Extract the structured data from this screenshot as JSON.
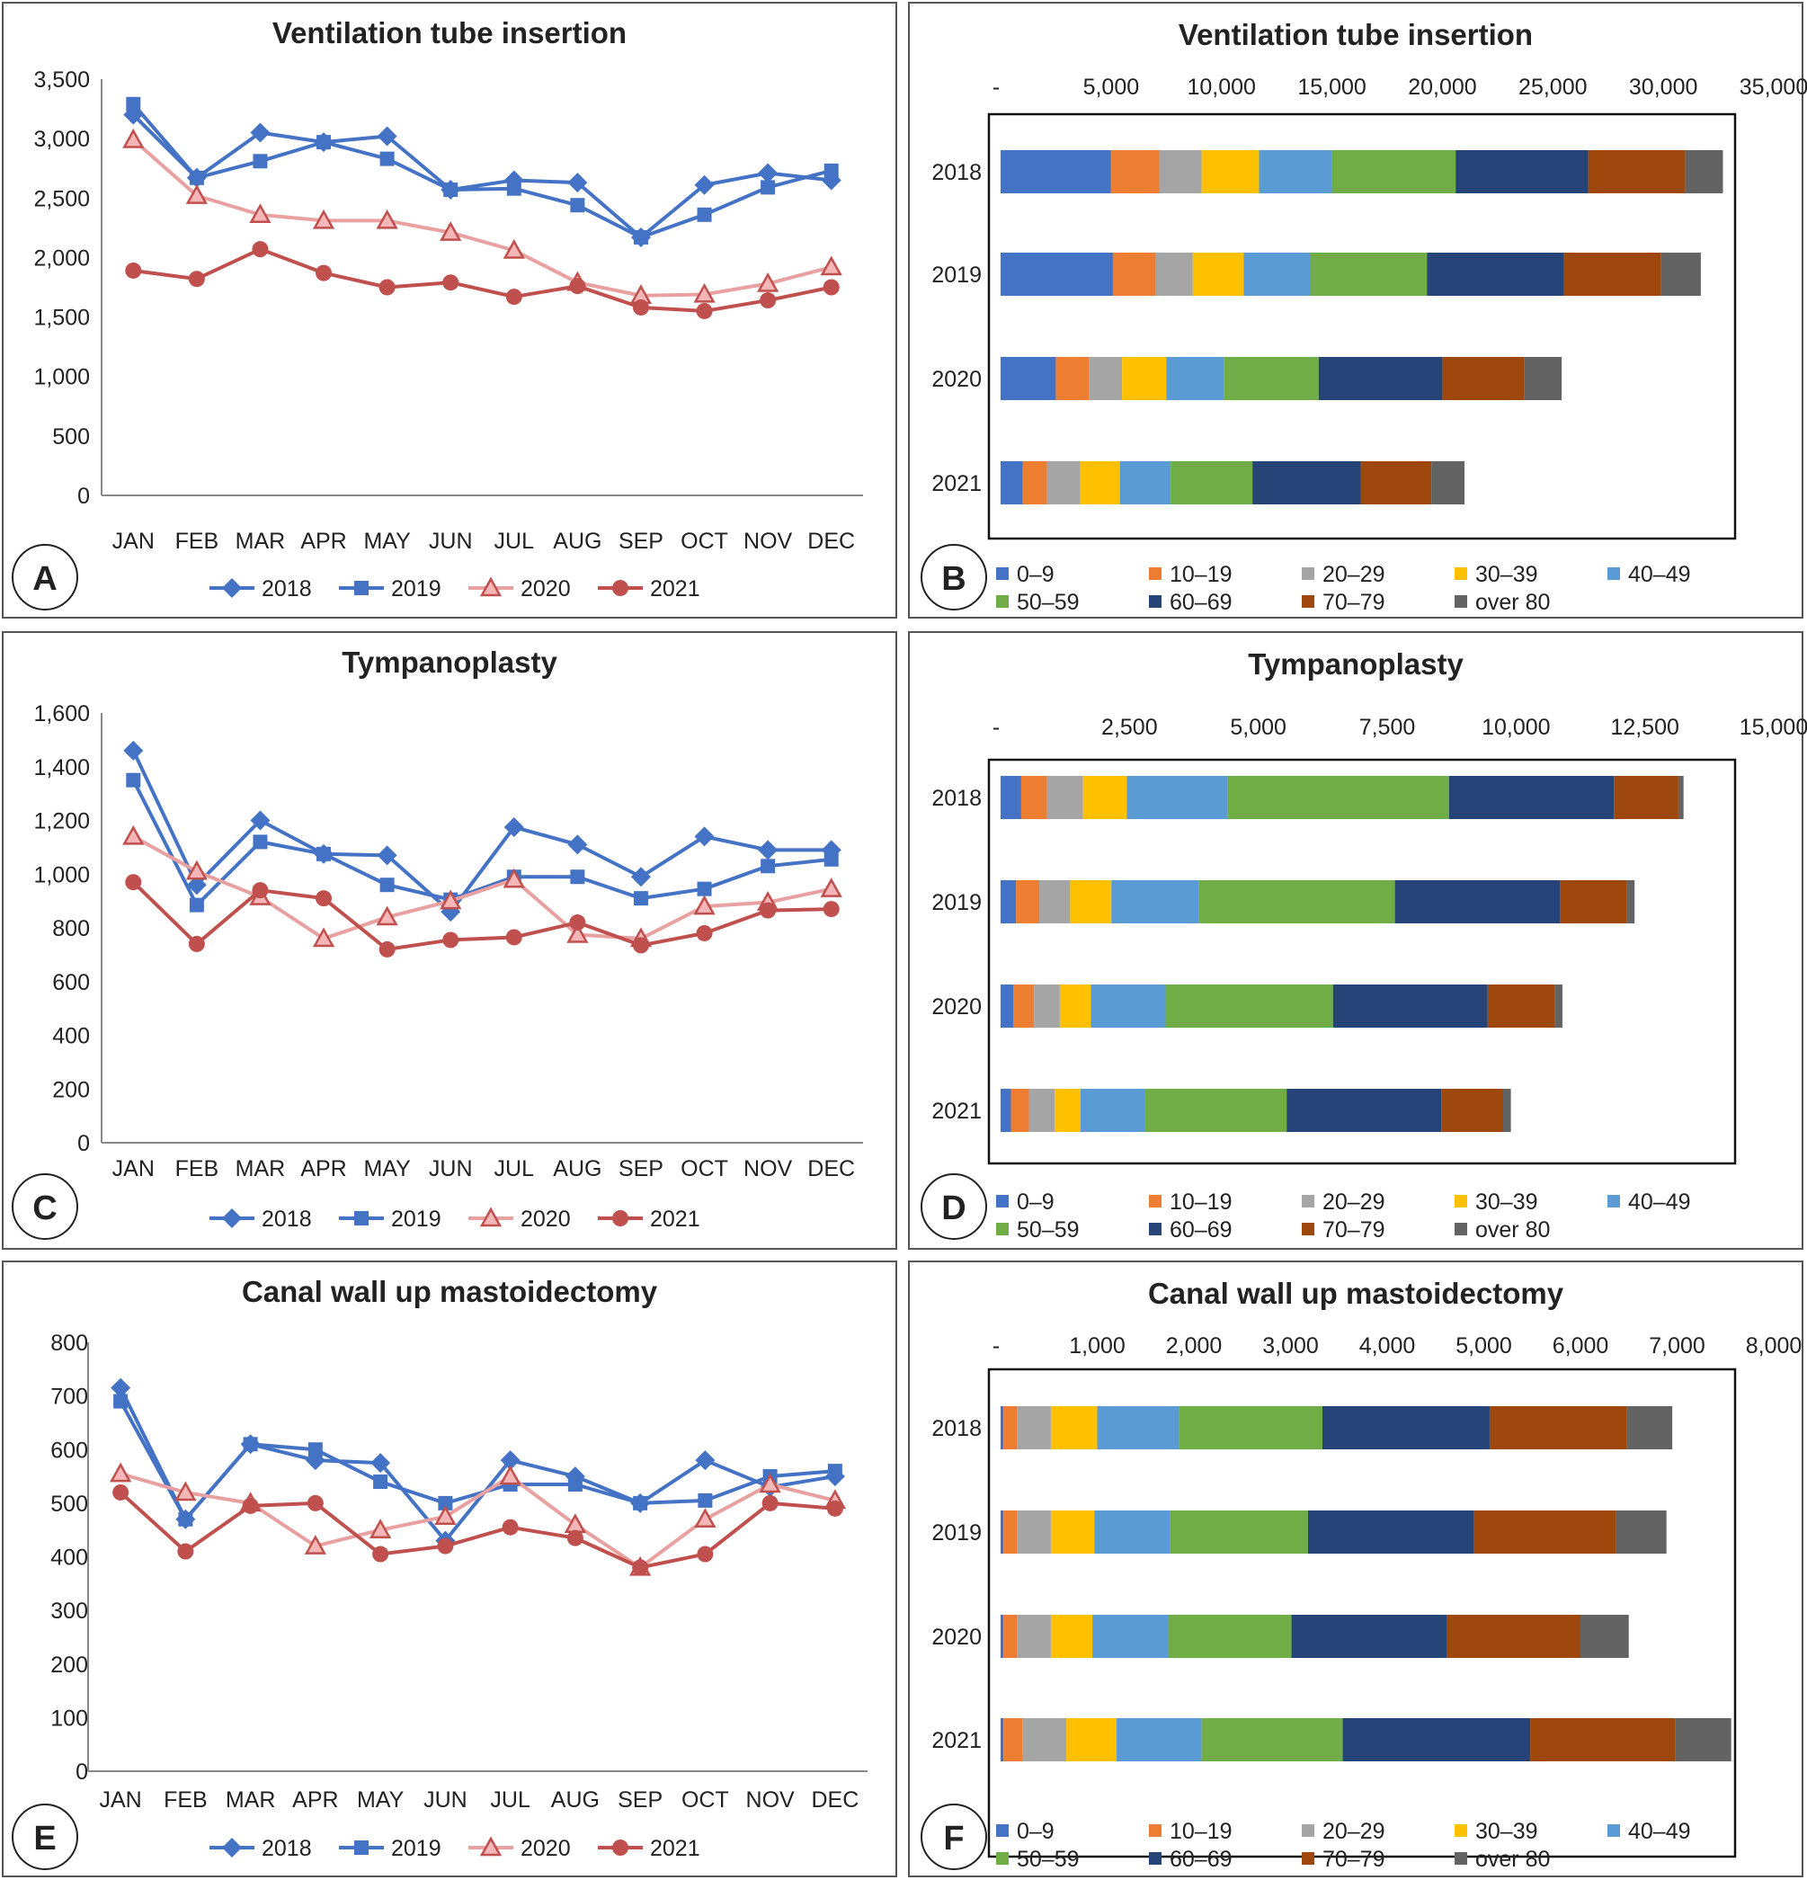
{
  "months": [
    "JAN",
    "FEB",
    "MAR",
    "APR",
    "MAY",
    "JUN",
    "JUL",
    "AUG",
    "SEP",
    "OCT",
    "NOV",
    "DEC"
  ],
  "years": [
    "2018",
    "2019",
    "2020",
    "2021"
  ],
  "age_groups": [
    "0–9",
    "10–19",
    "20–29",
    "30–39",
    "40–49",
    "50–59",
    "60–69",
    "70–79",
    "over 80"
  ],
  "colors": {
    "line": {
      "2018": "#4472C4",
      "2019": "#4472C4",
      "2020": "#E8A0A0",
      "2021": "#C0504D"
    },
    "line_marker": {
      "2020": "#C0504D"
    },
    "age": [
      "#4472C4",
      "#ED7D31",
      "#A5A5A5",
      "#FFC000",
      "#5B9BD5",
      "#70AD47",
      "#264478",
      "#9E480E",
      "#636363"
    ]
  },
  "chart_data": [
    {
      "panel": "A",
      "type": "line",
      "title": "Ventilation tube insertion",
      "ylim": [
        0,
        3500
      ],
      "yticks": [
        "0",
        "500",
        "1,000",
        "1,500",
        "2,000",
        "2,500",
        "3,000",
        "3,500"
      ],
      "series": [
        {
          "name": "2018",
          "marker": "diamond",
          "values": [
            3200,
            2670,
            3050,
            2970,
            3020,
            2570,
            2650,
            2630,
            2170,
            2610,
            2710,
            2650
          ]
        },
        {
          "name": "2019",
          "marker": "square",
          "values": [
            3290,
            2670,
            2810,
            2970,
            2830,
            2570,
            2580,
            2440,
            2170,
            2360,
            2590,
            2730
          ]
        },
        {
          "name": "2020",
          "marker": "triangle",
          "values": [
            2990,
            2520,
            2360,
            2310,
            2310,
            2210,
            2060,
            1790,
            1680,
            1690,
            1780,
            1920
          ]
        },
        {
          "name": "2021",
          "marker": "circle",
          "values": [
            1890,
            1820,
            2070,
            1870,
            1750,
            1790,
            1670,
            1760,
            1580,
            1550,
            1640,
            1750
          ]
        }
      ]
    },
    {
      "panel": "B",
      "type": "bar",
      "orientation": "horizontal",
      "stacked": true,
      "title": "Ventilation tube insertion",
      "xlim": [
        0,
        35000
      ],
      "xticks": [
        "-",
        "5,000",
        "10,000",
        "15,000",
        "20,000",
        "25,000",
        "30,000",
        "35,000"
      ],
      "categories": [
        "2018",
        "2019",
        "2020",
        "2021"
      ],
      "series": [
        {
          "name": "0–9",
          "values": [
            5000,
            5100,
            2500,
            1000
          ]
        },
        {
          "name": "10–19",
          "values": [
            2200,
            1900,
            1500,
            1100
          ]
        },
        {
          "name": "20–29",
          "values": [
            1900,
            1700,
            1500,
            1500
          ]
        },
        {
          "name": "30–39",
          "values": [
            2600,
            2300,
            2000,
            1800
          ]
        },
        {
          "name": "40–49",
          "values": [
            3300,
            3000,
            2600,
            2300
          ]
        },
        {
          "name": "50–59",
          "values": [
            5600,
            5300,
            4300,
            3700
          ]
        },
        {
          "name": "60–69",
          "values": [
            6000,
            6200,
            5600,
            4900
          ]
        },
        {
          "name": "70–79",
          "values": [
            4400,
            4400,
            3700,
            3200
          ]
        },
        {
          "name": "over 80",
          "values": [
            1700,
            1800,
            1700,
            1500
          ]
        }
      ]
    },
    {
      "panel": "C",
      "type": "line",
      "title": "Tympanoplasty",
      "ylim": [
        0,
        1600
      ],
      "yticks": [
        "0",
        "200",
        "400",
        "600",
        "800",
        "1,000",
        "1,200",
        "1,400",
        "1,600"
      ],
      "series": [
        {
          "name": "2018",
          "marker": "diamond",
          "values": [
            1460,
            960,
            1200,
            1075,
            1070,
            860,
            1175,
            1110,
            990,
            1140,
            1090,
            1090
          ]
        },
        {
          "name": "2019",
          "marker": "square",
          "values": [
            1350,
            885,
            1120,
            1075,
            960,
            905,
            990,
            990,
            910,
            945,
            1030,
            1055
          ]
        },
        {
          "name": "2020",
          "marker": "triangle",
          "values": [
            1140,
            1010,
            915,
            760,
            840,
            900,
            980,
            775,
            760,
            880,
            895,
            945
          ]
        },
        {
          "name": "2021",
          "marker": "circle",
          "values": [
            970,
            740,
            940,
            910,
            720,
            755,
            765,
            820,
            735,
            780,
            865,
            870
          ]
        }
      ]
    },
    {
      "panel": "D",
      "type": "bar",
      "orientation": "horizontal",
      "stacked": true,
      "title": "Tympanoplasty",
      "xlim": [
        0,
        15000
      ],
      "xticks": [
        "-",
        "2,500",
        "5,000",
        "7,500",
        "10,000",
        "12,500",
        "15,000"
      ],
      "categories": [
        "2018",
        "2019",
        "2020",
        "2021"
      ],
      "series": [
        {
          "name": "0–9",
          "values": [
            400,
            300,
            250,
            200
          ]
        },
        {
          "name": "10–19",
          "values": [
            500,
            450,
            400,
            350
          ]
        },
        {
          "name": "20–29",
          "values": [
            700,
            600,
            500,
            500
          ]
        },
        {
          "name": "30–39",
          "values": [
            850,
            800,
            600,
            500
          ]
        },
        {
          "name": "40–49",
          "values": [
            1950,
            1700,
            1450,
            1250
          ]
        },
        {
          "name": "50–59",
          "values": [
            4300,
            3800,
            3250,
            2750
          ]
        },
        {
          "name": "60–69",
          "values": [
            3200,
            3200,
            3000,
            3000
          ]
        },
        {
          "name": "70–79",
          "values": [
            1250,
            1300,
            1300,
            1200
          ]
        },
        {
          "name": "over 80",
          "values": [
            100,
            150,
            150,
            150
          ]
        }
      ]
    },
    {
      "panel": "E",
      "type": "line",
      "title": "Canal wall up mastoidectomy",
      "ylim": [
        0,
        800
      ],
      "yticks": [
        "0",
        "100",
        "200",
        "300",
        "400",
        "500",
        "600",
        "700",
        "800"
      ],
      "series": [
        {
          "name": "2018",
          "marker": "diamond",
          "values": [
            715,
            470,
            610,
            580,
            575,
            430,
            580,
            550,
            500,
            580,
            530,
            550
          ]
        },
        {
          "name": "2019",
          "marker": "square",
          "values": [
            690,
            470,
            610,
            600,
            540,
            500,
            535,
            535,
            500,
            505,
            550,
            560
          ]
        },
        {
          "name": "2020",
          "marker": "triangle",
          "values": [
            555,
            520,
            500,
            420,
            450,
            475,
            550,
            460,
            380,
            470,
            535,
            505
          ]
        },
        {
          "name": "2021",
          "marker": "circle",
          "values": [
            520,
            410,
            495,
            500,
            405,
            420,
            455,
            435,
            380,
            405,
            500,
            490
          ]
        }
      ]
    },
    {
      "panel": "F",
      "type": "bar",
      "orientation": "horizontal",
      "stacked": true,
      "title": "Canal wall up mastoidectomy",
      "xlim": [
        0,
        8000
      ],
      "xticks": [
        "-",
        "1,000",
        "2,000",
        "3,000",
        "4,000",
        "5,000",
        "6,000",
        "7,000",
        "8,000"
      ],
      "categories": [
        "2018",
        "2019",
        "2020",
        "2021"
      ],
      "series": [
        {
          "name": "0–9",
          "values": [
            30,
            30,
            30,
            30
          ]
        },
        {
          "name": "10–19",
          "values": [
            140,
            140,
            140,
            200
          ]
        },
        {
          "name": "20–29",
          "values": [
            350,
            350,
            350,
            450
          ]
        },
        {
          "name": "30–39",
          "values": [
            480,
            450,
            430,
            520
          ]
        },
        {
          "name": "40–49",
          "values": [
            850,
            780,
            780,
            880
          ]
        },
        {
          "name": "50–59",
          "values": [
            1480,
            1430,
            1280,
            1460
          ]
        },
        {
          "name": "60–69",
          "values": [
            1730,
            1720,
            1610,
            1940
          ]
        },
        {
          "name": "70–79",
          "values": [
            1420,
            1470,
            1380,
            1500
          ]
        },
        {
          "name": "over 80",
          "values": [
            470,
            520,
            500,
            580
          ]
        }
      ]
    }
  ]
}
